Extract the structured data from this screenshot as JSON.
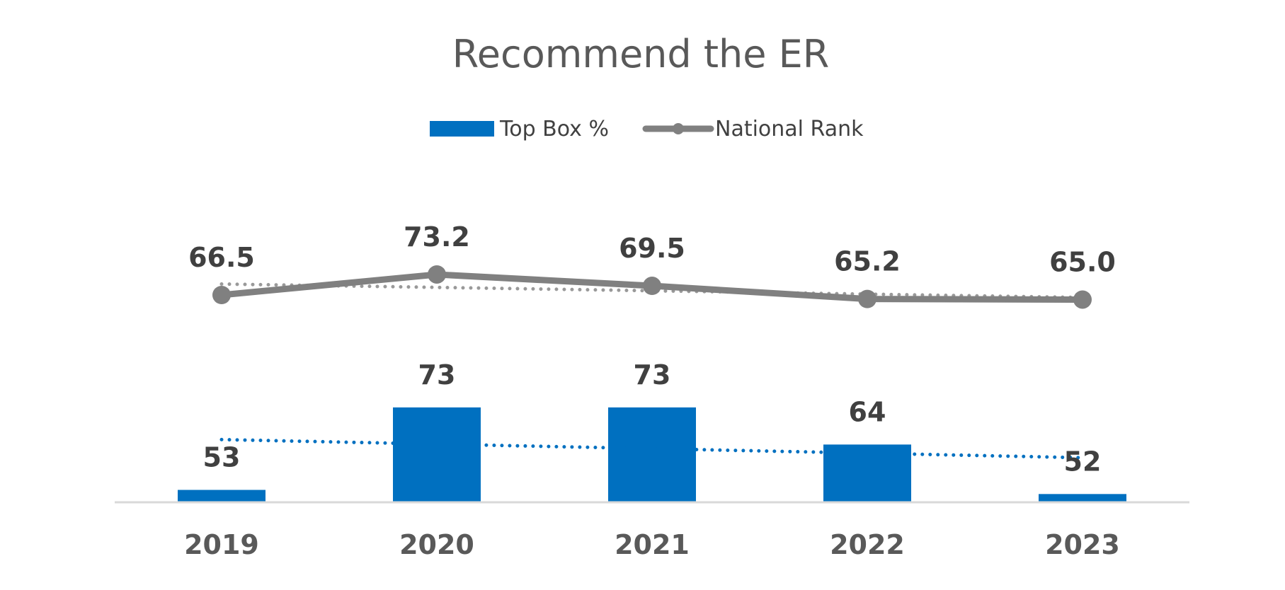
{
  "chart_data": {
    "type": "bar",
    "title": "Recommend the ER",
    "categories": [
      "2019",
      "2020",
      "2021",
      "2022",
      "2023"
    ],
    "series": [
      {
        "name": "Top Box %",
        "type": "bar",
        "values": [
          53,
          73,
          73,
          64,
          52
        ],
        "labels": [
          "53",
          "73",
          "73",
          "64",
          "52"
        ],
        "color": "#0070C0",
        "trendline": "linear dotted"
      },
      {
        "name": "National Rank",
        "type": "line",
        "marker": "circle",
        "values": [
          66.5,
          73.2,
          69.5,
          65.2,
          65.0
        ],
        "labels": [
          "66.5",
          "73.2",
          "69.5",
          "65.2",
          "65.0"
        ],
        "color": "#808080",
        "trendline": "linear dotted"
      }
    ],
    "legend": "top-center",
    "grid": false,
    "xlabel": "",
    "ylabel": ""
  }
}
